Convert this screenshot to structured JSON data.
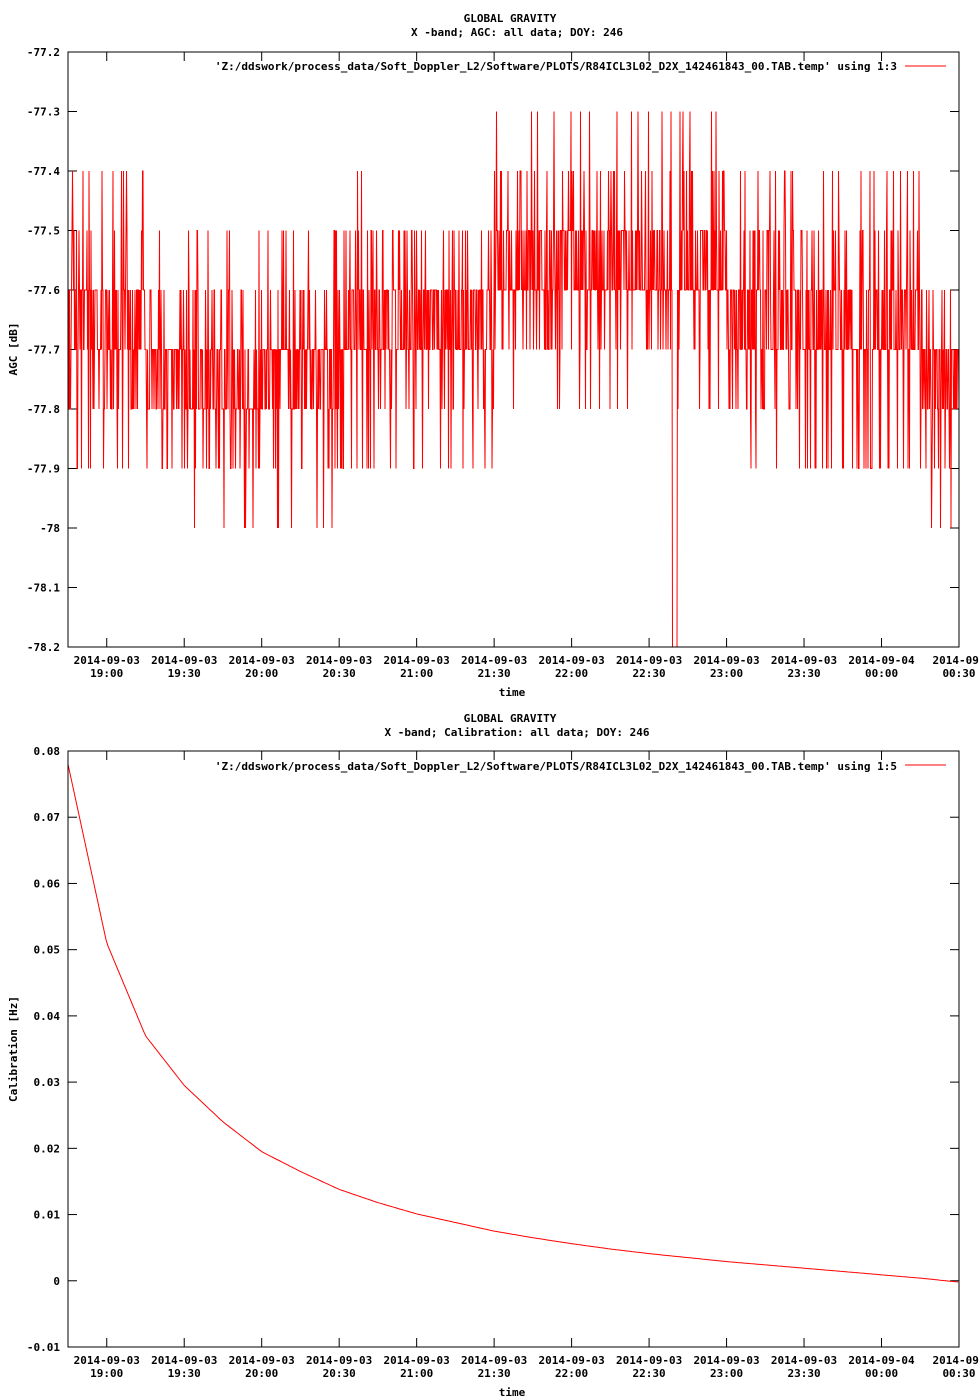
{
  "chart_data": [
    {
      "type": "line",
      "title": "GLOBAL GRAVITY",
      "subtitle": "X -band; AGC: all data; DOY: 246",
      "xlabel": "time",
      "ylabel": "AGC [dB]",
      "ylim": [
        -78.2,
        -77.2
      ],
      "y_ticks": [
        "-77.2",
        "-77.3",
        "-77.4",
        "-77.5",
        "-77.6",
        "-77.7",
        "-77.8",
        "-77.9",
        "-78",
        "-78.1",
        "-78.2"
      ],
      "x_ticks": [
        {
          "date": "2014-09-03",
          "time": "19:00"
        },
        {
          "date": "2014-09-03",
          "time": "19:30"
        },
        {
          "date": "2014-09-03",
          "time": "20:00"
        },
        {
          "date": "2014-09-03",
          "time": "20:30"
        },
        {
          "date": "2014-09-03",
          "time": "21:00"
        },
        {
          "date": "2014-09-03",
          "time": "21:30"
        },
        {
          "date": "2014-09-03",
          "time": "22:00"
        },
        {
          "date": "2014-09-03",
          "time": "22:30"
        },
        {
          "date": "2014-09-03",
          "time": "23:00"
        },
        {
          "date": "2014-09-03",
          "time": "23:30"
        },
        {
          "date": "2014-09-04",
          "time": "00:00"
        },
        {
          "date": "2014-09-",
          "time": "00:30"
        }
      ],
      "xlim": [
        "2014-09-03 18:45",
        "2014-09-04 00:30"
      ],
      "legend": "top-right",
      "series": [
        {
          "name": "'Z:/ddswork/process_data/Soft_Doppler_L2/Software/PLOTS/R84ICL3L02_D2X_142461843_00.TAB.temp' using 1:3",
          "color": "#ff0000",
          "x": [
            "2014-09-03 18:45",
            "2014-09-03 19:00",
            "2014-09-03 19:15",
            "2014-09-03 19:30",
            "2014-09-03 19:45",
            "2014-09-03 20:00",
            "2014-09-03 20:15",
            "2014-09-03 20:30",
            "2014-09-03 20:45",
            "2014-09-03 21:00",
            "2014-09-03 21:15",
            "2014-09-03 21:30",
            "2014-09-03 21:45",
            "2014-09-03 22:00",
            "2014-09-03 22:15",
            "2014-09-03 22:30",
            "2014-09-03 22:45",
            "2014-09-03 23:00",
            "2014-09-03 23:15",
            "2014-09-03 23:30",
            "2014-09-03 23:45",
            "2014-09-04 00:00",
            "2014-09-04 00:15",
            "2014-09-04 00:30"
          ],
          "values": [
            -77.65,
            -77.65,
            -77.7,
            -77.75,
            -77.8,
            -77.75,
            -77.75,
            -77.7,
            -77.7,
            -77.65,
            -77.65,
            -77.6,
            -77.6,
            -77.6,
            -77.6,
            -77.6,
            -77.6,
            -77.6,
            -77.65,
            -77.7,
            -77.7,
            -77.7,
            -77.7,
            -77.75
          ],
          "min": -78.2,
          "max": -77.3,
          "min_at": "2014-09-03 22:40"
        }
      ]
    },
    {
      "type": "line",
      "title": "GLOBAL GRAVITY",
      "subtitle": "X -band; Calibration: all data; DOY: 246",
      "xlabel": "time",
      "ylabel": "Calibration [Hz]",
      "ylim": [
        -0.01,
        0.08
      ],
      "y_ticks": [
        "0.08",
        "0.07",
        "0.06",
        "0.05",
        "0.04",
        "0.03",
        "0.02",
        "0.01",
        "0",
        "-0.01"
      ],
      "x_ticks": [
        {
          "date": "2014-09-03",
          "time": "19:00"
        },
        {
          "date": "2014-09-03",
          "time": "19:30"
        },
        {
          "date": "2014-09-03",
          "time": "20:00"
        },
        {
          "date": "2014-09-03",
          "time": "20:30"
        },
        {
          "date": "2014-09-03",
          "time": "21:00"
        },
        {
          "date": "2014-09-03",
          "time": "21:30"
        },
        {
          "date": "2014-09-03",
          "time": "22:00"
        },
        {
          "date": "2014-09-03",
          "time": "22:30"
        },
        {
          "date": "2014-09-03",
          "time": "23:00"
        },
        {
          "date": "2014-09-03",
          "time": "23:30"
        },
        {
          "date": "2014-09-04",
          "time": "00:00"
        },
        {
          "date": "2014-09-",
          "time": "00:30"
        }
      ],
      "xlim": [
        "2014-09-03 18:45",
        "2014-09-04 00:30"
      ],
      "legend": "top-right",
      "series": [
        {
          "name": "'Z:/ddswork/process_data/Soft_Doppler_L2/Software/PLOTS/R84ICL3L02_D2X_142461843_00.TAB.temp' using 1:5",
          "color": "#ff0000",
          "x": [
            "2014-09-03 18:45",
            "2014-09-03 19:00",
            "2014-09-03 19:15",
            "2014-09-03 19:30",
            "2014-09-03 19:45",
            "2014-09-03 20:00",
            "2014-09-03 20:15",
            "2014-09-03 20:30",
            "2014-09-03 20:45",
            "2014-09-03 21:00",
            "2014-09-03 21:15",
            "2014-09-03 21:30",
            "2014-09-03 21:45",
            "2014-09-03 22:00",
            "2014-09-03 22:15",
            "2014-09-03 22:30",
            "2014-09-03 22:45",
            "2014-09-03 23:00",
            "2014-09-03 23:15",
            "2014-09-03 23:30",
            "2014-09-03 23:45",
            "2014-09-04 00:00",
            "2014-09-04 00:15",
            "2014-09-04 00:30"
          ],
          "values": [
            0.078,
            0.051,
            0.037,
            0.0295,
            0.024,
            0.0195,
            0.0165,
            0.0138,
            0.0118,
            0.0101,
            0.0088,
            0.0075,
            0.0065,
            0.0056,
            0.0048,
            0.0041,
            0.0035,
            0.0029,
            0.0024,
            0.0019,
            0.0014,
            0.0009,
            0.0004,
            -0.0002
          ]
        }
      ]
    }
  ]
}
